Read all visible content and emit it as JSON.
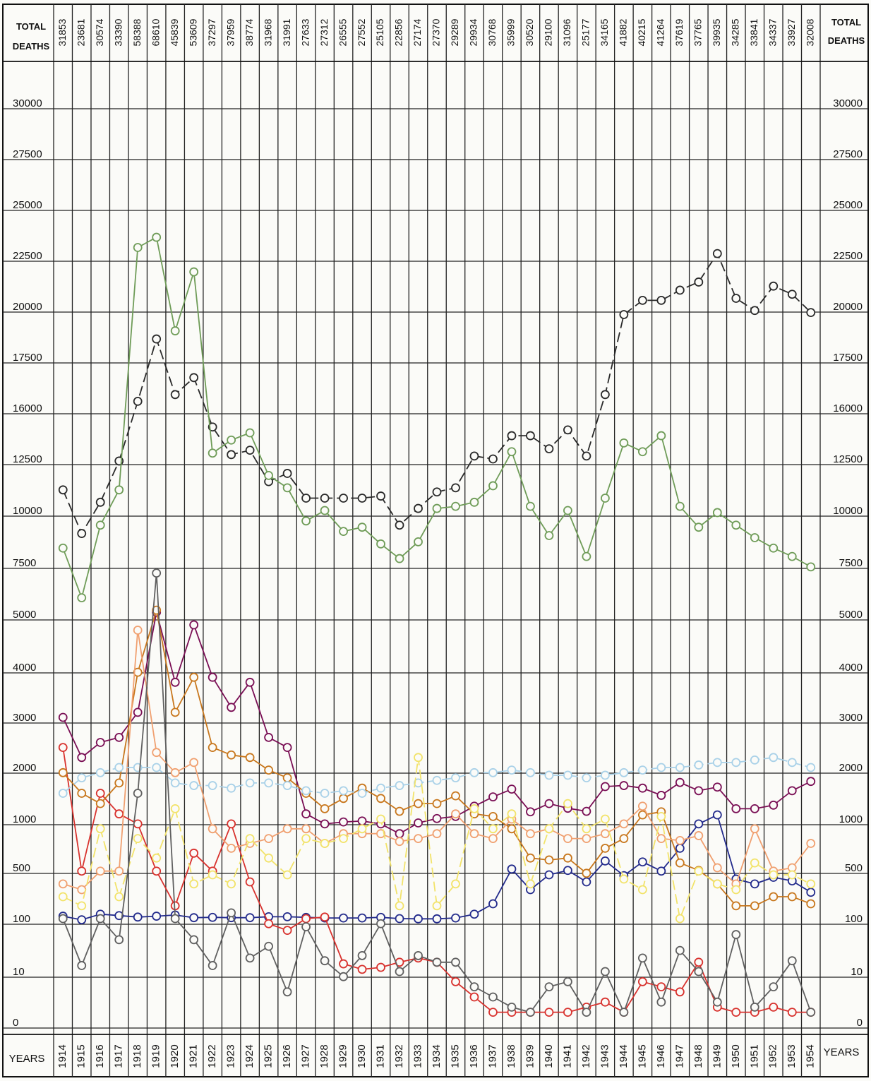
{
  "header": {
    "left_title_line1": "TOTAL",
    "left_title_line2": "DEATHS",
    "right_title_line1": "TOTAL",
    "right_title_line2": "DEATHS",
    "left_years_label": "YEARS",
    "right_years_label": "YEARS"
  },
  "chart_data": {
    "type": "line",
    "title": "",
    "xlabel": "YEARS",
    "ylabel": "TOTAL DEATHS",
    "grid": true,
    "x": [
      1914,
      1915,
      1916,
      1917,
      1918,
      1919,
      1920,
      1921,
      1922,
      1923,
      1924,
      1925,
      1926,
      1927,
      1928,
      1929,
      1930,
      1931,
      1932,
      1933,
      1934,
      1935,
      1936,
      1937,
      1938,
      1939,
      1940,
      1941,
      1942,
      1943,
      1944,
      1945,
      1946,
      1947,
      1948,
      1949,
      1950,
      1951,
      1952,
      1953,
      1954
    ],
    "total_deaths": [
      "31853",
      "23681",
      "30574",
      "33390",
      "58388",
      "68610",
      "45839",
      "53609",
      "37297",
      "37959",
      "38774",
      "31968",
      "31991",
      "27633",
      "27312",
      "26555",
      "27552",
      "25105",
      "22856",
      "27174",
      "27370",
      "29289",
      "29934",
      "30768",
      "35999",
      "30520",
      "29100",
      "31096",
      "25177",
      "34165",
      "41882",
      "40215",
      "41264",
      "37619",
      "37765",
      "39935",
      "34285",
      "33841",
      "34337",
      "33927",
      "32008"
    ],
    "y_ticks": [
      "0",
      "10",
      "100",
      "500",
      "1000",
      "2000",
      "3000",
      "4000",
      "5000",
      "7500",
      "10000",
      "12500",
      "16000",
      "17500",
      "20000",
      "22500",
      "25000",
      "27500",
      "30000"
    ],
    "series": [
      {
        "color": "#2a2a2a",
        "dashed": true,
        "values": [
          11000,
          8900,
          10400,
          12400,
          16200,
          18400,
          16400,
          16900,
          14700,
          12800,
          13100,
          11400,
          11800,
          10600,
          10600,
          10600,
          10600,
          10700,
          9300,
          10100,
          10900,
          11100,
          12700,
          12500,
          14100,
          14100,
          13200,
          14500,
          12700,
          16400,
          19600,
          20300,
          20300,
          20800,
          21200,
          22600,
          20400,
          19800,
          21000,
          20600,
          19700
        ]
      },
      {
        "color": "#6f9c58",
        "dashed": false,
        "values": [
          8200,
          5800,
          9300,
          11000,
          22900,
          23400,
          18800,
          21700,
          12900,
          13800,
          14300,
          11700,
          11100,
          9500,
          10000,
          9000,
          9200,
          8400,
          7700,
          8500,
          10100,
          10200,
          10400,
          11200,
          13000,
          10200,
          8800,
          10000,
          7800,
          10600,
          13600,
          13000,
          14100,
          10200,
          9200,
          9900,
          9300,
          8700,
          8200,
          7800,
          7300
        ]
      },
      {
        "color": "#7a0f55",
        "dashed": false,
        "values": [
          3000,
          2200,
          2500,
          2600,
          3100,
          5100,
          3700,
          4800,
          3800,
          3200,
          3700,
          2600,
          2400,
          1100,
          950,
          970,
          980,
          950,
          850,
          960,
          1010,
          1050,
          1250,
          1430,
          1580,
          1140,
          1300,
          1210,
          1150,
          1630,
          1650,
          1600,
          1460,
          1710,
          1550,
          1620,
          1200,
          1200,
          1270,
          1550,
          1730
        ]
      },
      {
        "color": "#232b8c",
        "dashed": false,
        "values": [
          108,
          95,
          115,
          110,
          105,
          108,
          112,
          103,
          104,
          103,
          103,
          106,
          106,
          104,
          102,
          102,
          102,
          104,
          100,
          99,
          99,
          102,
          115,
          160,
          480,
          250,
          400,
          460,
          320,
          570,
          390,
          560,
          450,
          700,
          950,
          1080,
          350,
          300,
          370,
          330,
          230
        ]
      },
      {
        "color": "#d8322e",
        "dashed": false,
        "values": [
          2400,
          450,
          1500,
          1100,
          950,
          450,
          150,
          650,
          450,
          950,
          320,
          80,
          60,
          100,
          105,
          14,
          11,
          12,
          15,
          18,
          15,
          8,
          5,
          2,
          2,
          2,
          2,
          2,
          3,
          4,
          2,
          8,
          7,
          6,
          15,
          3,
          2,
          2,
          3,
          2,
          2
        ]
      },
      {
        "color": "#c8771d",
        "dashed": false,
        "values": [
          1900,
          1500,
          1300,
          1700,
          3900,
          5200,
          3100,
          3800,
          2400,
          2250,
          2200,
          1950,
          1800,
          1500,
          1200,
          1400,
          1600,
          1400,
          1150,
          1300,
          1300,
          1450,
          1100,
          1050,
          900,
          600,
          580,
          600,
          420,
          700,
          800,
          1080,
          1140,
          550,
          460,
          300,
          150,
          150,
          200,
          200,
          160
        ]
      },
      {
        "color": "#f0a070",
        "dashed": false,
        "values": [
          300,
          250,
          450,
          450,
          4700,
          2300,
          1900,
          2100,
          900,
          700,
          750,
          800,
          900,
          900,
          750,
          850,
          850,
          850,
          770,
          800,
          850,
          1100,
          850,
          800,
          1000,
          850,
          900,
          800,
          800,
          850,
          950,
          1250,
          800,
          780,
          830,
          500,
          300,
          900,
          450,
          500,
          750
        ]
      },
      {
        "color": "#a9d1e8",
        "dashed": true,
        "values": [
          1500,
          1800,
          1900,
          2000,
          2000,
          2000,
          1700,
          1650,
          1650,
          1600,
          1700,
          1700,
          1650,
          1550,
          1500,
          1550,
          1500,
          1600,
          1650,
          1700,
          1750,
          1800,
          1900,
          1900,
          1950,
          1900,
          1850,
          1850,
          1800,
          1850,
          1900,
          1950,
          2000,
          2000,
          2050,
          2100,
          2100,
          2150,
          2200,
          2100,
          2000
        ]
      },
      {
        "color": "#f2e36a",
        "dashed": true,
        "values": [
          200,
          150,
          900,
          200,
          800,
          600,
          1200,
          300,
          400,
          300,
          800,
          600,
          400,
          800,
          750,
          800,
          900,
          1000,
          150,
          2200,
          150,
          300,
          1200,
          900,
          1100,
          300,
          900,
          1300,
          900,
          1000,
          350,
          250,
          1050,
          100,
          450,
          300,
          250,
          550,
          400,
          400,
          300
        ]
      },
      {
        "color": "#606060",
        "dashed": false,
        "values": [
          100,
          13,
          100,
          40,
          1500,
          7000,
          100,
          40,
          13,
          120,
          18,
          30,
          6,
          70,
          16,
          9,
          20,
          80,
          10,
          20,
          15,
          15,
          7,
          5,
          3,
          2,
          7,
          8,
          2,
          10,
          2,
          18,
          4,
          25,
          10,
          4,
          50,
          3,
          7,
          16,
          2
        ]
      }
    ]
  }
}
